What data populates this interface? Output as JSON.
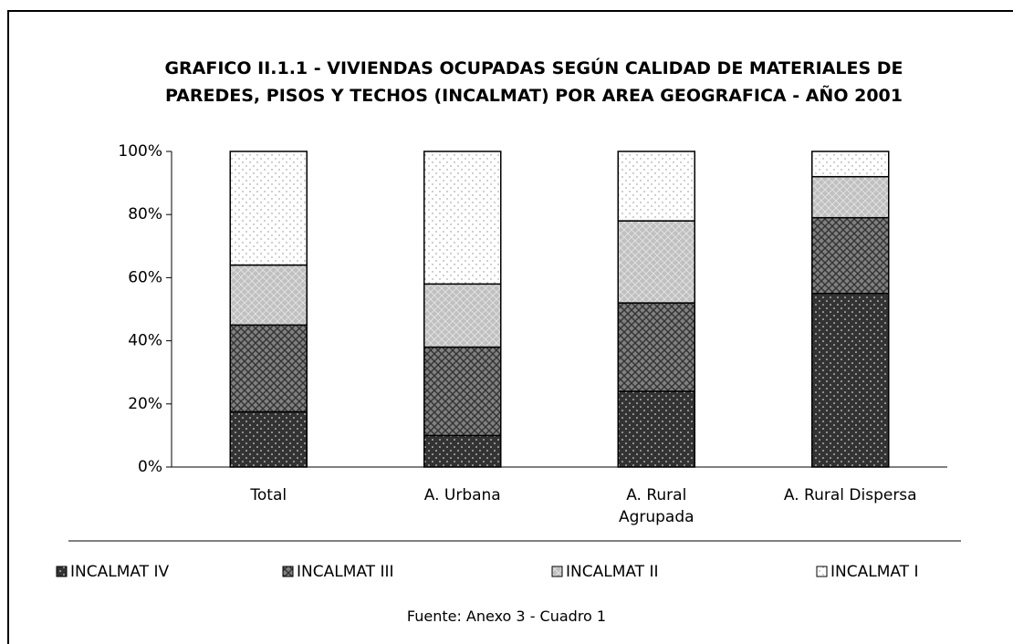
{
  "chart_data": {
    "type": "stacked_bar",
    "title": "GRAFICO II.1.1 - VIVIENDAS OCUPADAS SEGÚN CALIDAD DE MATERIALES DE PAREDES, PISOS Y TECHOS (INCALMAT) POR AREA GEOGRAFICA - AÑO 2001",
    "categories": [
      "Total",
      "A. Urbana",
      "A. Rural Agrupada",
      "A. Rural Dispersa"
    ],
    "series": [
      {
        "name": "INCALMAT IV",
        "color": "#333333",
        "values": [
          17.5,
          10,
          24,
          55
        ]
      },
      {
        "name": "INCALMAT III",
        "color": "#808080",
        "values": [
          27.5,
          28,
          28,
          24
        ]
      },
      {
        "name": "INCALMAT II",
        "color": "#c0c0c0",
        "values": [
          19,
          20,
          26,
          13
        ]
      },
      {
        "name": "INCALMAT I",
        "color": "#ffffff",
        "values": [
          36,
          42,
          22,
          8
        ]
      }
    ],
    "ylim": [
      0,
      100
    ],
    "yticks": [
      {
        "value": 0,
        "label": "0%"
      },
      {
        "value": 20,
        "label": "20%"
      },
      {
        "value": 40,
        "label": "40%"
      },
      {
        "value": 60,
        "label": "60%"
      },
      {
        "value": 80,
        "label": "80%"
      },
      {
        "value": 100,
        "label": "100%"
      }
    ],
    "legend": "bottom",
    "source": "Fuente: Anexo 3 - Cuadro 1"
  }
}
